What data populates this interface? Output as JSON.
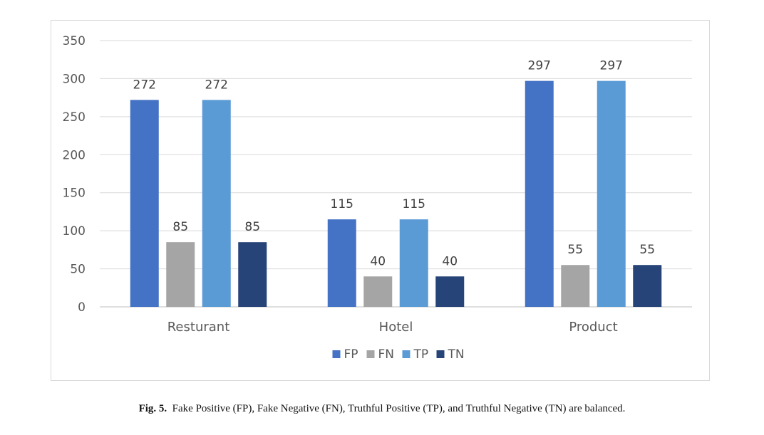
{
  "chart_data": {
    "type": "bar",
    "title": "",
    "xlabel": "",
    "ylabel": "",
    "ylim": [
      0,
      350
    ],
    "yticks": [
      0,
      50,
      100,
      150,
      200,
      250,
      300,
      350
    ],
    "grid": true,
    "legend_position": "bottom",
    "categories": [
      "Resturant",
      "Hotel",
      "Product"
    ],
    "series": [
      {
        "name": "FP",
        "color": "#4472c4",
        "values": [
          272,
          115,
          297
        ]
      },
      {
        "name": "FN",
        "color": "#a5a5a5",
        "values": [
          85,
          40,
          55
        ]
      },
      {
        "name": "TP",
        "color": "#5b9bd5",
        "values": [
          272,
          115,
          297
        ]
      },
      {
        "name": "TN",
        "color": "#264478",
        "values": [
          85,
          40,
          55
        ]
      }
    ]
  },
  "caption": {
    "label": "Fig. 5.",
    "text": "Fake Positive (FP), Fake Negative (FN), Truthful Positive (TP), and Truthful Negative (TN) are balanced."
  }
}
